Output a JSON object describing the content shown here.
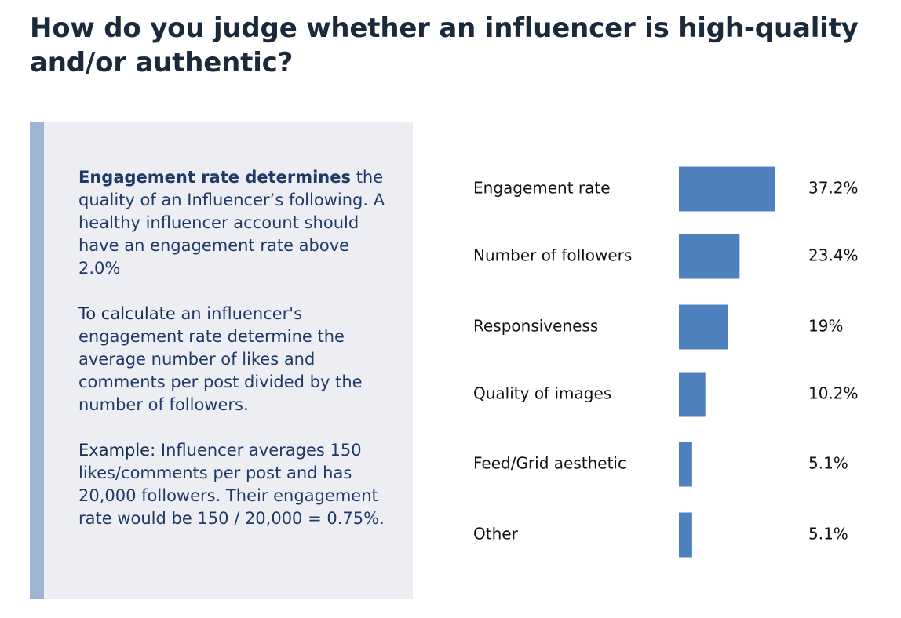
{
  "title": "How do you judge whether an influencer is high-quality and/or authentic?",
  "panel": {
    "p1_lead": "Engagement rate determines",
    "p1_body": "the quality of an Influencer’s following. A healthy influencer account should have an engagement rate above 2.0%",
    "p2_lead": "To calculate",
    "p2_body": "an influencer's engagement rate determine the average number of likes and comments per post divided by the number of followers.",
    "p3_lead": "Example:",
    "p3_body": "Influencer averages 150 likes/comments per post and has 20,000 followers. Their engagement rate would be 150 / 20,000  = 0.75%."
  },
  "colors": {
    "bar": "#4e81bd",
    "panel_bg": "#eceef3",
    "panel_accent": "#9fb3d5",
    "text_dark": "#1b2a3a",
    "text_navy": "#1f3a66"
  },
  "chart_data": {
    "type": "bar",
    "orientation": "horizontal",
    "categories": [
      "Engagement rate",
      "Number of followers",
      "Responsiveness",
      "Quality of images",
      "Feed/Grid aesthetic",
      "Other"
    ],
    "values": [
      37.2,
      23.4,
      19,
      10.2,
      5.1,
      5.1
    ],
    "value_labels": [
      "37.2%",
      "23.4%",
      "19%",
      "10.2%",
      "5.1%",
      "5.1%"
    ],
    "unit": "%",
    "xlim": [
      0,
      37.2
    ],
    "grid": false,
    "legend": "none"
  }
}
